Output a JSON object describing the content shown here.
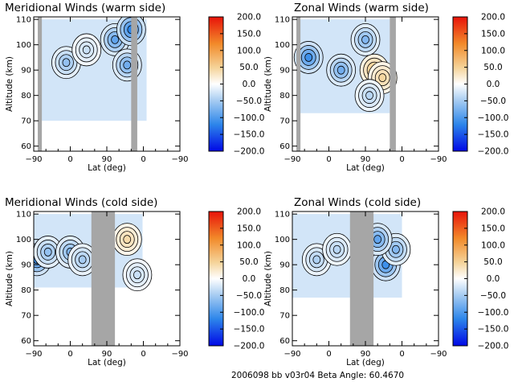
{
  "footer": "2006098 bb v03r04   Beta Angle: 60.4670",
  "colorbar": {
    "ticks": [
      "200.0",
      "150.0",
      "100.0",
      "50.0",
      "0.0",
      "−50.0",
      "−100.0",
      "−150.0",
      "−200.0"
    ],
    "range": [
      -200,
      200
    ],
    "colors": {
      "max": "#e8130a",
      "high": "#f28a2a",
      "mid_high": "#f5d49a",
      "zero": "#ffffff",
      "mid_low": "#a9cdf2",
      "low": "#2d86ea",
      "min": "#0008e6"
    }
  },
  "chart_data": [
    {
      "type": "heatmap",
      "title": "Meridional Winds (warm side)",
      "xlabel": "Lat (deg)",
      "ylabel": "Altitude (km)",
      "x_ticks": [
        "−90",
        "0",
        "90",
        "0",
        "−90"
      ],
      "y_ticks": [
        "60",
        "70",
        "80",
        "90",
        "100",
        "110"
      ],
      "ylim": [
        58,
        111
      ],
      "gray_bands": [
        [
          -80,
          -70
        ],
        [
          150,
          165
        ]
      ],
      "data_extent": [
        [
          -78,
          188
        ],
        [
          70,
          110
        ]
      ],
      "blobs": [
        {
          "x": -10,
          "y": 93,
          "value": -60
        },
        {
          "x": 40,
          "y": 98,
          "value": -30
        },
        {
          "x": 110,
          "y": 102,
          "value": -90
        },
        {
          "x": 140,
          "y": 92,
          "value": -80
        },
        {
          "x": 150,
          "y": 106,
          "value": -120
        }
      ]
    },
    {
      "type": "heatmap",
      "title": "Zonal Winds (warm side)",
      "xlabel": "Lat (deg)",
      "ylabel": "Altitude (km)",
      "x_ticks": [
        "−90",
        "0",
        "90",
        "0",
        "−90"
      ],
      "y_ticks": [
        "60",
        "70",
        "80",
        "90",
        "100",
        "110"
      ],
      "ylim": [
        58,
        111
      ],
      "gray_bands": [
        [
          -80,
          -70
        ],
        [
          150,
          165
        ]
      ],
      "data_extent": [
        [
          -75,
          150
        ],
        [
          73,
          110
        ]
      ],
      "blobs": [
        {
          "x": -50,
          "y": 95,
          "value": -110
        },
        {
          "x": 30,
          "y": 90,
          "value": -80
        },
        {
          "x": 112,
          "y": 90,
          "value": 60
        },
        {
          "x": 132,
          "y": 87,
          "value": 45
        },
        {
          "x": 90,
          "y": 102,
          "value": -70
        },
        {
          "x": 100,
          "y": 80,
          "value": -40
        }
      ]
    },
    {
      "type": "heatmap",
      "title": "Meridional Winds (cold side)",
      "xlabel": "Lat (deg)",
      "ylabel": "Altitude (km)",
      "x_ticks": [
        "−90",
        "0",
        "90",
        "0",
        "−90"
      ],
      "y_ticks": [
        "60",
        "70",
        "80",
        "90",
        "100",
        "110"
      ],
      "ylim": [
        58,
        111
      ],
      "gray_bands": [
        [
          52,
          110
        ]
      ],
      "data_extent": [
        [
          -90,
          178
        ],
        [
          81,
          110
        ]
      ],
      "blobs": [
        {
          "x": -82,
          "y": 92,
          "value": -110
        },
        {
          "x": -55,
          "y": 95,
          "value": -60
        },
        {
          "x": 0,
          "y": 95,
          "value": -70
        },
        {
          "x": 30,
          "y": 92,
          "value": -50
        },
        {
          "x": 140,
          "y": 100,
          "value": 40
        },
        {
          "x": 165,
          "y": 86,
          "value": -30
        }
      ]
    },
    {
      "type": "heatmap",
      "title": "Zonal Winds (cold side)",
      "xlabel": "Lat (deg)",
      "ylabel": "Altitude (km)",
      "x_ticks": [
        "−90",
        "0",
        "90",
        "0",
        "−90"
      ],
      "y_ticks": [
        "60",
        "70",
        "80",
        "90",
        "100",
        "110"
      ],
      "ylim": [
        58,
        111
      ],
      "gray_bands": [
        [
          52,
          110
        ]
      ],
      "data_extent": [
        [
          -90,
          180
        ],
        [
          77,
          110
        ]
      ],
      "blobs": [
        {
          "x": -30,
          "y": 92,
          "value": -45
        },
        {
          "x": 20,
          "y": 96,
          "value": -40
        },
        {
          "x": 140,
          "y": 90,
          "value": -110
        },
        {
          "x": 165,
          "y": 96,
          "value": -70
        },
        {
          "x": 120,
          "y": 100,
          "value": -90
        }
      ]
    }
  ]
}
